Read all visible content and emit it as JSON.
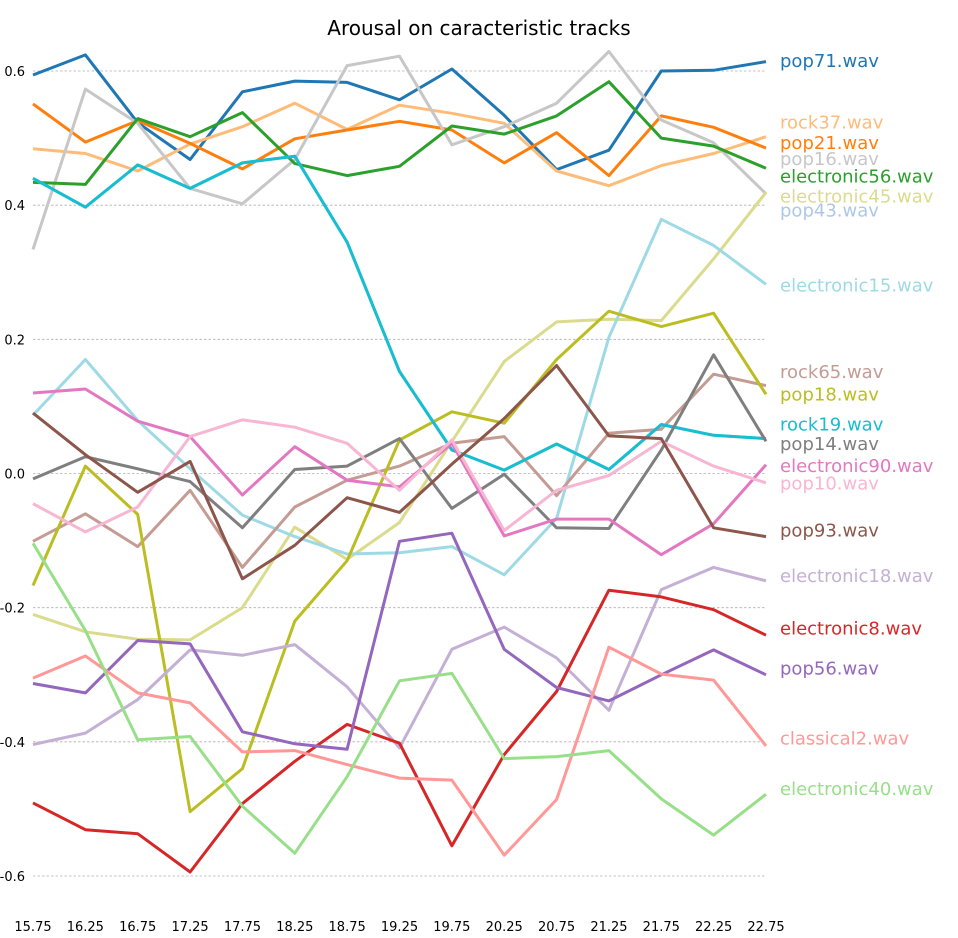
{
  "chart_data": {
    "type": "line",
    "title": "Arousal on caracteristic tracks",
    "xlabel": "",
    "ylabel": "",
    "xlim": [
      15.75,
      22.75
    ],
    "ylim": [
      -0.63,
      0.65
    ],
    "grid": true,
    "legend": "right",
    "x": [
      15.75,
      16.25,
      16.75,
      17.25,
      17.75,
      18.25,
      18.75,
      19.25,
      19.75,
      20.25,
      20.75,
      21.25,
      21.75,
      22.25,
      22.75
    ],
    "x_tick_labels": [
      "15.75",
      "16.25",
      "16.75",
      "17.25",
      "17.75",
      "18.25",
      "18.75",
      "19.25",
      "19.75",
      "20.25",
      "20.75",
      "21.25",
      "21.75",
      "22.25",
      "22.75"
    ],
    "y_ticks": [
      0.6,
      0.4,
      0.2,
      0.0,
      -0.2,
      -0.4,
      -0.6
    ],
    "y_tick_labels": [
      "0.6",
      "0.4",
      "0.2",
      "0.0",
      "-0.2",
      "-0.4",
      "-0.6"
    ],
    "series": [
      {
        "name": "pop71.wav",
        "color": "#1f77b4",
        "label_value": 0.615,
        "values": [
          0.594,
          0.624,
          0.523,
          0.468,
          0.569,
          0.585,
          0.583,
          0.557,
          0.603,
          0.534,
          0.453,
          0.482,
          0.6,
          0.601,
          0.614
        ]
      },
      {
        "name": "rock37.wav",
        "color": "#ffbb78",
        "label_value": 0.523,
        "values": [
          0.484,
          0.477,
          0.451,
          0.491,
          0.517,
          0.552,
          0.513,
          0.549,
          0.537,
          0.522,
          0.451,
          0.429,
          0.459,
          0.477,
          0.502
        ]
      },
      {
        "name": "pop21.wav",
        "color": "#ff7f0e",
        "label_value": 0.493,
        "values": [
          0.551,
          0.494,
          0.526,
          0.492,
          0.454,
          0.499,
          0.512,
          0.525,
          0.512,
          0.463,
          0.508,
          0.444,
          0.533,
          0.516,
          0.485
        ]
      },
      {
        "name": "pop16.wav",
        "color": "#c7c7c7",
        "label_value": 0.469,
        "values": [
          0.334,
          0.573,
          0.522,
          0.425,
          0.402,
          0.468,
          0.608,
          0.622,
          0.49,
          0.517,
          0.552,
          0.629,
          0.527,
          0.493,
          0.417
        ]
      },
      {
        "name": "electronic56.wav",
        "color": "#2ca02c",
        "label_value": 0.443,
        "values": [
          0.434,
          0.431,
          0.529,
          0.502,
          0.538,
          0.462,
          0.444,
          0.458,
          0.518,
          0.506,
          0.533,
          0.584,
          0.5,
          0.488,
          0.455
        ]
      },
      {
        "name": "electronic45.wav",
        "color": "#dbdb8d",
        "label_value": 0.413,
        "values": [
          -0.21,
          -0.236,
          -0.247,
          -0.248,
          -0.2,
          -0.08,
          -0.128,
          -0.073,
          0.048,
          0.167,
          0.226,
          0.23,
          0.228,
          0.32,
          0.419
        ]
      },
      {
        "name": "pop43.wav",
        "color": "#aec7e8",
        "label_value": 0.392,
        "values": [
          0.44,
          0.397,
          0.46,
          0.425,
          0.463,
          0.473,
          0.345,
          0.152,
          0.035,
          0.005,
          0.044,
          0.006,
          0.073,
          0.057,
          0.052
        ]
      },
      {
        "name": "electronic15.wav",
        "color": "#9edae5",
        "label_value": 0.28,
        "values": [
          0.087,
          0.17,
          0.079,
          0.007,
          -0.062,
          -0.094,
          -0.12,
          -0.118,
          -0.109,
          -0.151,
          -0.067,
          0.203,
          0.379,
          0.34,
          0.282
        ]
      },
      {
        "name": "rock65.wav",
        "color": "#c49c94",
        "label_value": 0.151,
        "values": [
          -0.101,
          -0.06,
          -0.109,
          -0.025,
          -0.14,
          -0.05,
          -0.01,
          0.011,
          0.045,
          0.055,
          -0.033,
          0.06,
          0.066,
          0.148,
          0.131
        ]
      },
      {
        "name": "pop18.wav",
        "color": "#bcbd22",
        "label_value": 0.118,
        "values": [
          -0.167,
          0.011,
          -0.061,
          -0.504,
          -0.44,
          -0.22,
          -0.13,
          0.05,
          0.092,
          0.075,
          0.17,
          0.242,
          0.219,
          0.239,
          0.118
        ]
      },
      {
        "name": "rock19.wav",
        "color": "#17becf",
        "label_value": 0.073,
        "values": [
          0.44,
          0.397,
          0.46,
          0.425,
          0.463,
          0.473,
          0.345,
          0.152,
          0.035,
          0.005,
          0.044,
          0.006,
          0.073,
          0.057,
          0.052
        ]
      },
      {
        "name": "pop14.wav",
        "color": "#7f7f7f",
        "label_value": 0.044,
        "values": [
          -0.008,
          0.025,
          0.007,
          -0.012,
          -0.081,
          0.006,
          0.011,
          0.052,
          -0.052,
          -0.001,
          -0.081,
          -0.082,
          0.035,
          0.177,
          0.048
        ]
      },
      {
        "name": "electronic90.wav",
        "color": "#e377c2",
        "label_value": 0.011,
        "values": [
          0.12,
          0.126,
          0.078,
          0.055,
          -0.032,
          0.04,
          -0.01,
          -0.02,
          0.045,
          -0.093,
          -0.068,
          -0.068,
          -0.121,
          -0.075,
          0.013
        ]
      },
      {
        "name": "pop10.wav",
        "color": "#f7b6d2",
        "label_value": -0.015,
        "values": [
          -0.045,
          -0.087,
          -0.05,
          0.055,
          0.08,
          0.069,
          0.045,
          -0.025,
          0.05,
          -0.085,
          -0.025,
          -0.003,
          0.048,
          0.011,
          -0.014
        ]
      },
      {
        "name": "pop93.wav",
        "color": "#8c564b",
        "label_value": -0.085,
        "values": [
          0.09,
          0.028,
          -0.028,
          0.018,
          -0.157,
          -0.107,
          -0.036,
          -0.058,
          0.014,
          0.082,
          0.161,
          0.056,
          0.052,
          -0.081,
          -0.094
        ]
      },
      {
        "name": "electronic18.wav",
        "color": "#c5b0d5",
        "label_value": -0.153,
        "values": [
          -0.404,
          -0.387,
          -0.337,
          -0.263,
          -0.271,
          -0.255,
          -0.318,
          -0.409,
          -0.262,
          -0.229,
          -0.275,
          -0.353,
          -0.173,
          -0.14,
          -0.16
        ]
      },
      {
        "name": "electronic8.wav",
        "color": "#d62728",
        "label_value": -0.231,
        "values": [
          -0.491,
          -0.531,
          -0.537,
          -0.594,
          -0.492,
          -0.429,
          -0.374,
          -0.402,
          -0.555,
          -0.419,
          -0.325,
          -0.174,
          -0.184,
          -0.203,
          -0.241
        ]
      },
      {
        "name": "pop56.wav",
        "color": "#9467bd",
        "label_value": -0.291,
        "values": [
          -0.313,
          -0.327,
          -0.249,
          -0.254,
          -0.385,
          -0.403,
          -0.411,
          -0.101,
          -0.089,
          -0.262,
          -0.319,
          -0.339,
          -0.3,
          -0.263,
          -0.3
        ]
      },
      {
        "name": "classical2.wav",
        "color": "#ff9896",
        "label_value": -0.395,
        "values": [
          -0.305,
          -0.272,
          -0.327,
          -0.342,
          -0.415,
          -0.413,
          -0.434,
          -0.454,
          -0.457,
          -0.569,
          -0.486,
          -0.259,
          -0.299,
          -0.308,
          -0.406
        ]
      },
      {
        "name": "electronic40.wav",
        "color": "#98df8a",
        "label_value": -0.47,
        "values": [
          -0.104,
          -0.234,
          -0.397,
          -0.392,
          -0.496,
          -0.566,
          -0.452,
          -0.309,
          -0.298,
          -0.425,
          -0.422,
          -0.413,
          -0.485,
          -0.539,
          -0.478
        ]
      }
    ]
  }
}
